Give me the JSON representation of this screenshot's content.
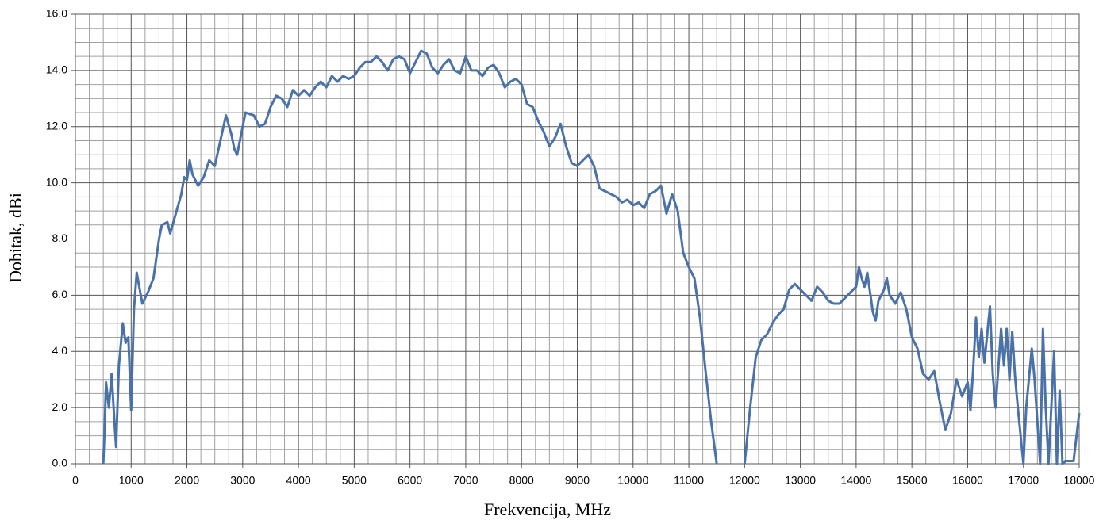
{
  "chart_data": {
    "type": "line",
    "x_label": "Frekvencija, MHz",
    "y_label": "Dobitak, dBi",
    "xlim": [
      0,
      18000
    ],
    "ylim": [
      0,
      16
    ],
    "xticks": [
      0,
      1000,
      2000,
      3000,
      4000,
      5000,
      6000,
      7000,
      8000,
      9000,
      10000,
      11000,
      12000,
      13000,
      14000,
      15000,
      16000,
      17000,
      18000
    ],
    "yticks": [
      {
        "value": 0,
        "label": "0.0"
      },
      {
        "value": 2,
        "label": "2.0"
      },
      {
        "value": 4,
        "label": "4.0"
      },
      {
        "value": 6,
        "label": "6.0"
      },
      {
        "value": 8,
        "label": "8.0"
      },
      {
        "value": 10,
        "label": "10.0"
      },
      {
        "value": 12,
        "label": "12.0"
      },
      {
        "value": 14,
        "label": "14.0"
      },
      {
        "value": 16,
        "label": "16.0"
      }
    ],
    "grid": true,
    "minor_grid": {
      "x": 4,
      "y": 4
    },
    "x": [
      500,
      520,
      550,
      600,
      650,
      700,
      730,
      780,
      850,
      900,
      950,
      1000,
      1050,
      1100,
      1200,
      1300,
      1400,
      1500,
      1550,
      1650,
      1700,
      1800,
      1900,
      1950,
      2000,
      2050,
      2100,
      2200,
      2300,
      2400,
      2500,
      2600,
      2700,
      2800,
      2850,
      2900,
      3000,
      3050,
      3200,
      3300,
      3400,
      3500,
      3600,
      3700,
      3800,
      3900,
      4000,
      4100,
      4200,
      4300,
      4400,
      4500,
      4600,
      4700,
      4800,
      4900,
      5000,
      5100,
      5200,
      5300,
      5400,
      5500,
      5600,
      5700,
      5800,
      5900,
      6000,
      6100,
      6200,
      6300,
      6400,
      6500,
      6600,
      6700,
      6800,
      6900,
      7000,
      7100,
      7200,
      7300,
      7400,
      7500,
      7600,
      7700,
      7800,
      7900,
      8000,
      8100,
      8200,
      8300,
      8400,
      8500,
      8600,
      8700,
      8800,
      8900,
      9000,
      9100,
      9200,
      9300,
      9400,
      9500,
      9600,
      9700,
      9800,
      9900,
      10000,
      10100,
      10200,
      10300,
      10400,
      10500,
      10600,
      10700,
      10800,
      10900,
      11000,
      11100,
      11200,
      11300,
      11400,
      11500,
      11750,
      12000,
      12100,
      12200,
      12300,
      12400,
      12500,
      12600,
      12700,
      12800,
      12900,
      13000,
      13100,
      13200,
      13300,
      13400,
      13500,
      13600,
      13700,
      13800,
      13900,
      14000,
      14050,
      14100,
      14150,
      14200,
      14300,
      14350,
      14400,
      14500,
      14550,
      14600,
      14700,
      14800,
      14900,
      15000,
      15100,
      15200,
      15300,
      15400,
      15500,
      15600,
      15700,
      15800,
      15900,
      16000,
      16050,
      16100,
      16150,
      16200,
      16250,
      16300,
      16400,
      16450,
      16500,
      16600,
      16650,
      16700,
      16750,
      16800,
      16850,
      16900,
      17000,
      17050,
      17150,
      17200,
      17300,
      17350,
      17400,
      17450,
      17550,
      17600,
      17650,
      17700,
      17750,
      17900,
      18000
    ],
    "series": [
      {
        "name": "Dobitak",
        "color": "#4a72a8",
        "values": [
          0,
          1.0,
          2.9,
          2.0,
          3.2,
          1.5,
          0.6,
          3.5,
          5.0,
          4.3,
          4.5,
          1.9,
          5.5,
          6.8,
          5.7,
          6.1,
          6.6,
          8.0,
          8.5,
          8.6,
          8.2,
          8.9,
          9.6,
          10.2,
          10.1,
          10.8,
          10.3,
          9.9,
          10.2,
          10.8,
          10.6,
          11.5,
          12.4,
          11.7,
          11.2,
          11.0,
          12.0,
          12.5,
          12.4,
          12.0,
          12.1,
          12.7,
          13.1,
          13.0,
          12.7,
          13.3,
          13.1,
          13.3,
          13.1,
          13.4,
          13.6,
          13.4,
          13.8,
          13.6,
          13.8,
          13.7,
          13.8,
          14.1,
          14.3,
          14.3,
          14.5,
          14.3,
          14.0,
          14.4,
          14.5,
          14.4,
          13.9,
          14.3,
          14.7,
          14.6,
          14.1,
          13.9,
          14.2,
          14.4,
          14.0,
          13.9,
          14.5,
          14.0,
          14.0,
          13.8,
          14.1,
          14.2,
          13.9,
          13.4,
          13.6,
          13.7,
          13.5,
          12.8,
          12.7,
          12.2,
          11.8,
          11.3,
          11.6,
          12.1,
          11.3,
          10.7,
          10.6,
          10.8,
          11.0,
          10.6,
          9.8,
          9.7,
          9.6,
          9.5,
          9.3,
          9.4,
          9.2,
          9.3,
          9.1,
          9.6,
          9.7,
          9.9,
          8.9,
          9.6,
          9.0,
          7.5,
          7.0,
          6.6,
          5.2,
          3.3,
          1.5,
          0.0,
          null,
          0.0,
          2.0,
          3.8,
          4.4,
          4.6,
          5.0,
          5.3,
          5.5,
          6.2,
          6.4,
          6.2,
          6.0,
          5.8,
          6.3,
          6.1,
          5.8,
          5.7,
          5.7,
          5.9,
          6.1,
          6.3,
          7.0,
          6.6,
          6.3,
          6.8,
          5.4,
          5.1,
          5.8,
          6.2,
          6.6,
          6.0,
          5.7,
          6.1,
          5.5,
          4.5,
          4.1,
          3.2,
          3.0,
          3.3,
          2.2,
          1.2,
          1.8,
          3.0,
          2.4,
          2.9,
          1.9,
          3.4,
          5.2,
          3.8,
          4.8,
          3.6,
          5.6,
          3.2,
          2.0,
          4.8,
          3.5,
          4.8,
          3.0,
          4.7,
          3.1,
          2.0,
          0.0,
          2.0,
          4.1,
          3.0,
          0.0,
          4.8,
          2.0,
          0.0,
          4.0,
          0.0,
          2.6,
          0.0,
          0.1,
          0.1,
          1.8
        ]
      }
    ]
  }
}
